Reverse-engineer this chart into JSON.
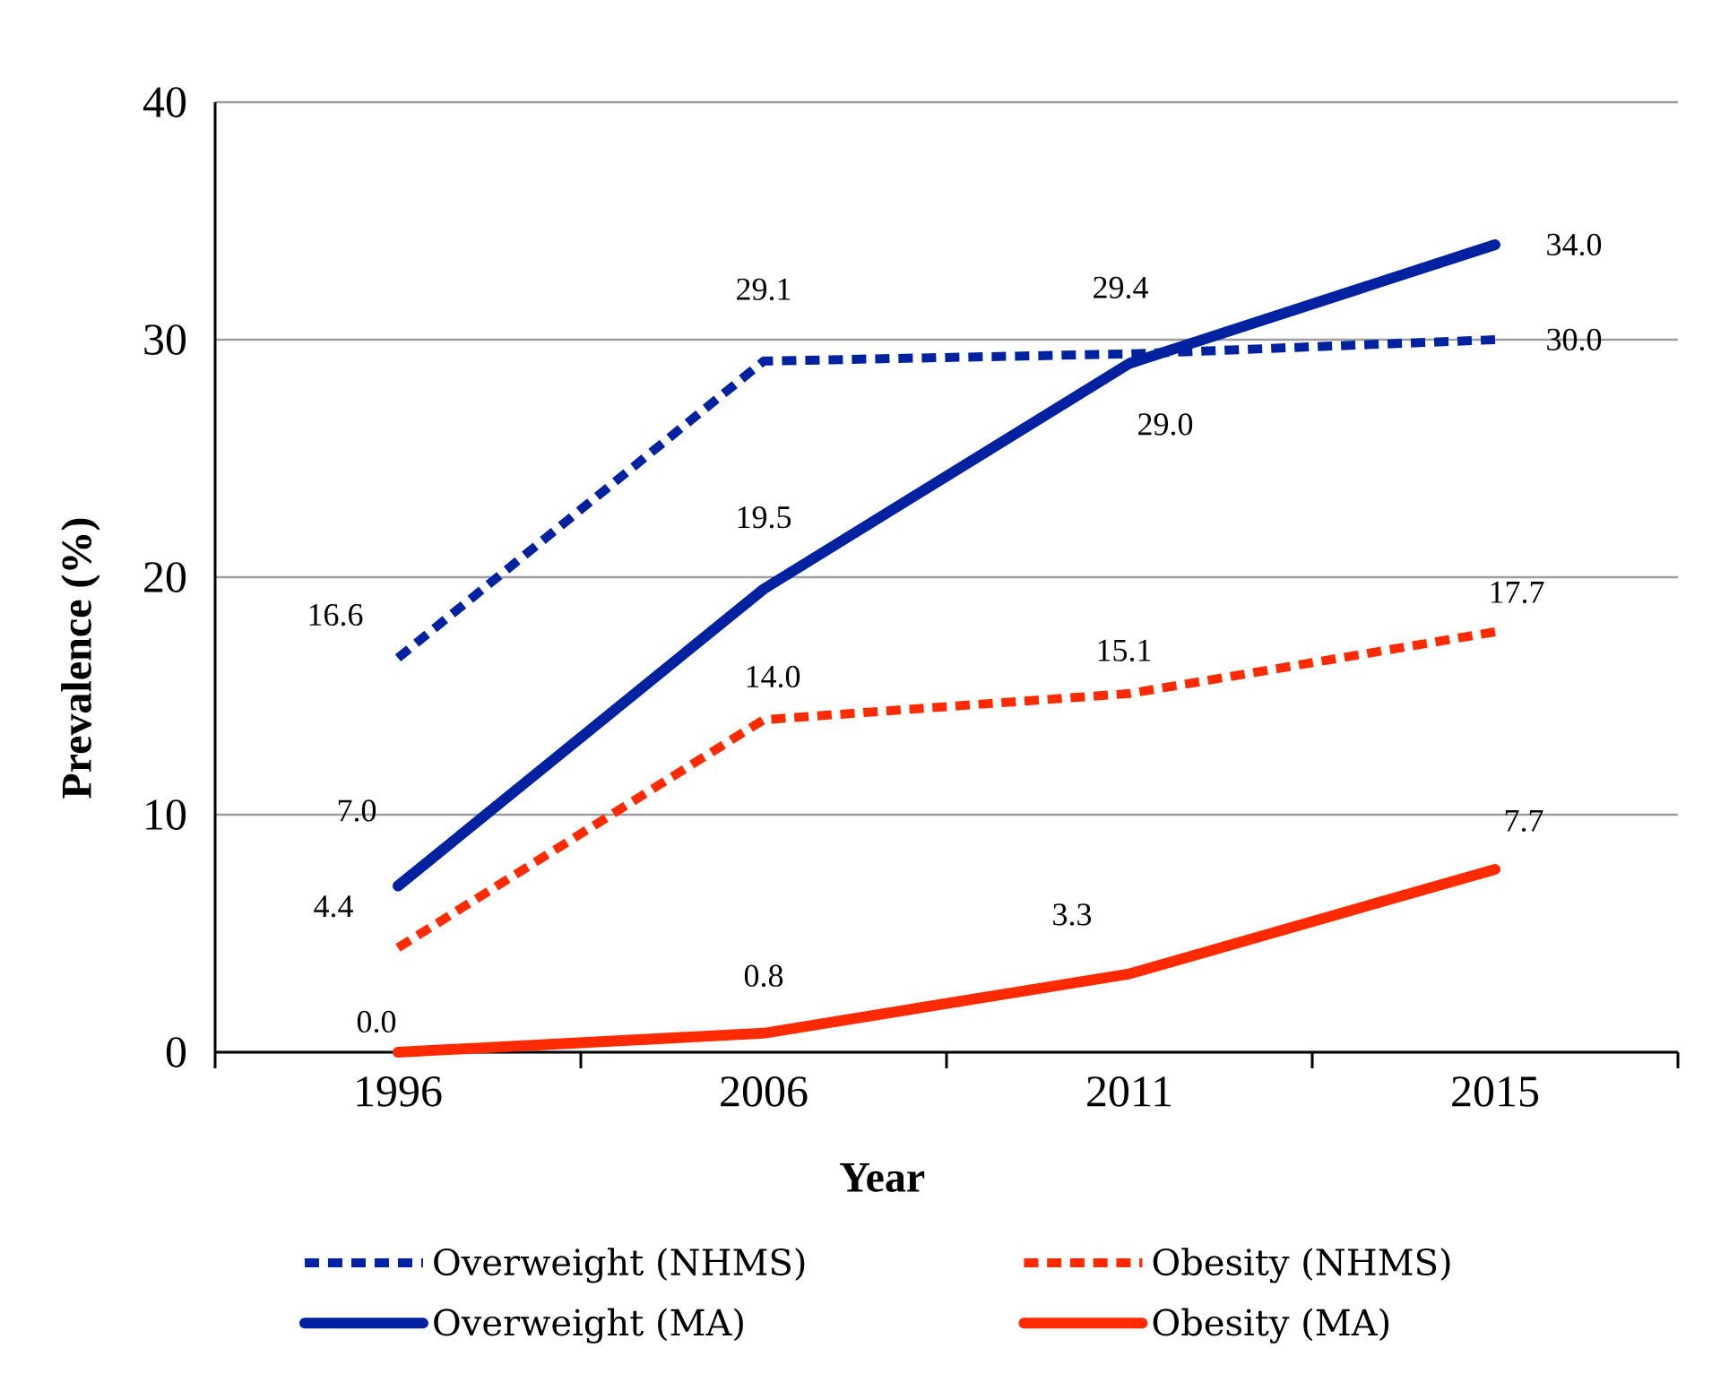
{
  "chart_data": {
    "type": "line",
    "xlabel": "Year",
    "ylabel": "Prevalence (%)",
    "categories": [
      "1996",
      "2006",
      "2011",
      "2015"
    ],
    "series": [
      {
        "name": "Overweight (NHMS)",
        "color": "#0022a0",
        "line_style": "dotted",
        "values": [
          16.6,
          29.1,
          29.4,
          30.0
        ],
        "value_labels": [
          "16.6",
          "29.1",
          "29.4",
          "30.0"
        ]
      },
      {
        "name": "Obesity (NHMS)",
        "color": "#ff2a00",
        "line_style": "dotted",
        "values": [
          4.4,
          14.0,
          15.1,
          17.7
        ],
        "value_labels": [
          "4.4",
          "14.0",
          "15.1",
          "17.7"
        ]
      },
      {
        "name": "Overweight (MA)",
        "color": "#0022a0",
        "line_style": "solid",
        "values": [
          7.0,
          19.5,
          29.0,
          34.0
        ],
        "value_labels": [
          "7.0",
          "19.5",
          "29.0",
          "34.0"
        ]
      },
      {
        "name": "Obesity (MA)",
        "color": "#ff2a00",
        "line_style": "solid",
        "values": [
          0.0,
          0.8,
          3.3,
          7.7
        ],
        "value_labels": [
          "0.0",
          "0.8",
          "3.3",
          "7.7"
        ]
      }
    ],
    "ylim": [
      0,
      40
    ],
    "yticks": [
      0,
      10,
      20,
      30,
      40
    ],
    "grid": "y",
    "legend": "bottom",
    "marker": "none"
  }
}
